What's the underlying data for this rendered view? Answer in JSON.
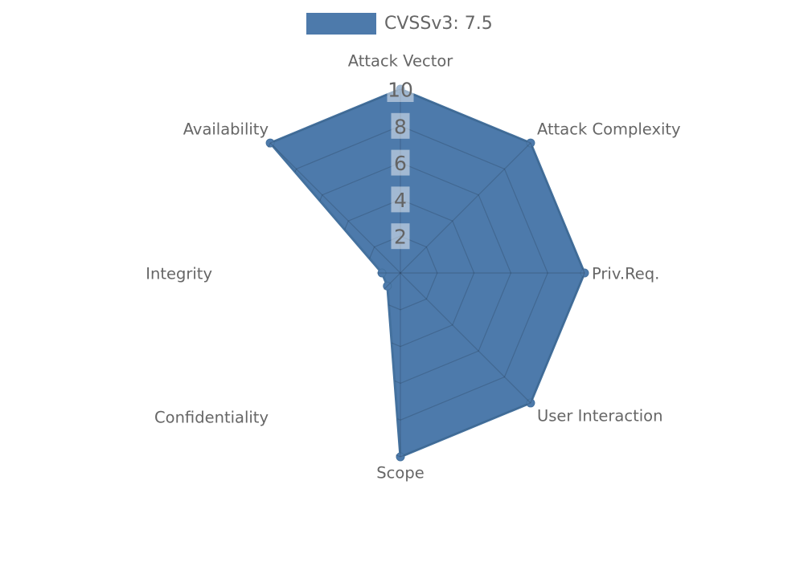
{
  "legend": {
    "label": "CVSSv3: 7.5"
  },
  "chart_data": {
    "type": "radar",
    "title": "CVSSv3: 7.5",
    "categories": [
      "Attack Vector",
      "Attack Complexity",
      "Priv.Req.",
      "User Interaction",
      "Scope",
      "Confidentiality",
      "Integrity",
      "Availability"
    ],
    "series": [
      {
        "name": "CVSSv3: 7.5",
        "values": [
          10,
          10,
          10,
          10,
          10,
          1,
          1,
          10
        ]
      }
    ],
    "radial_ticks": [
      2,
      4,
      6,
      8,
      10
    ],
    "rmax": 10,
    "grid": true,
    "legend_position": "top-center",
    "colors": {
      "series_fill": "#4d7aab",
      "series_line": "#44719e",
      "grid_line": "rgba(0,0,0,0.15)",
      "tick_text": "#646464",
      "tick_box": "rgba(255,255,255,0.48)",
      "category_text": "#666666",
      "background": "#ffffff"
    }
  }
}
